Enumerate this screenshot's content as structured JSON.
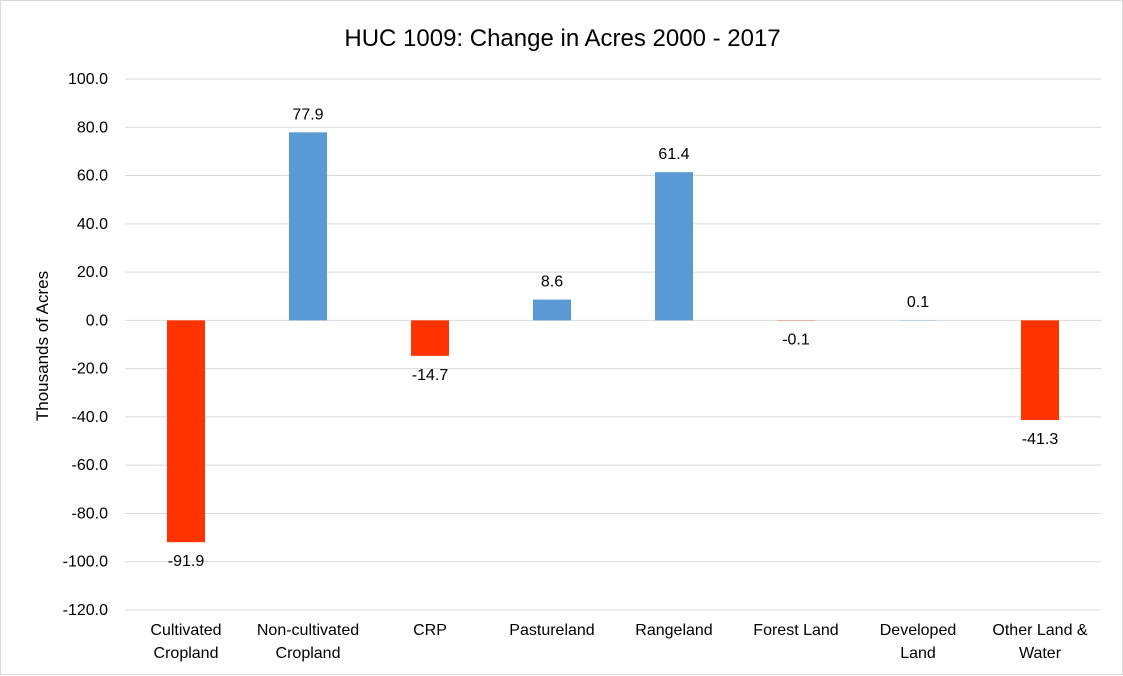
{
  "chart_data": {
    "type": "bar",
    "title": "HUC 1009: Change in Acres 2000 - 2017",
    "xlabel": "",
    "ylabel": "Thousands of Acres",
    "categories": [
      [
        "Cultivated",
        "Cropland"
      ],
      [
        "Non-cultivated",
        "Cropland"
      ],
      [
        "CRP"
      ],
      [
        "Pastureland"
      ],
      [
        "Rangeland"
      ],
      [
        "Forest Land"
      ],
      [
        "Developed",
        "Land"
      ],
      [
        "Other Land &",
        "Water"
      ]
    ],
    "values": [
      -91.9,
      77.9,
      -14.7,
      8.6,
      61.4,
      -0.1,
      0.1,
      -41.3
    ],
    "data_labels": [
      "-91.9",
      "77.9",
      "-14.7",
      "8.6",
      "61.4",
      "-0.1",
      "0.1",
      "-41.3"
    ],
    "ylim": [
      -120,
      100
    ],
    "yticks": [
      100,
      80,
      60,
      40,
      20,
      0,
      -20,
      -40,
      -60,
      -80,
      -100,
      -120
    ],
    "ytick_labels": [
      "100.0",
      "80.0",
      "60.0",
      "40.0",
      "20.0",
      "0.0",
      "-20.0",
      "-40.0",
      "-60.0",
      "-80.0",
      "-100.0",
      "-120.0"
    ],
    "grid": true,
    "legend": "none",
    "colors": {
      "positive": "#5b9bd5",
      "negative": "#ff3300",
      "grid": "#d9d9d9"
    }
  }
}
